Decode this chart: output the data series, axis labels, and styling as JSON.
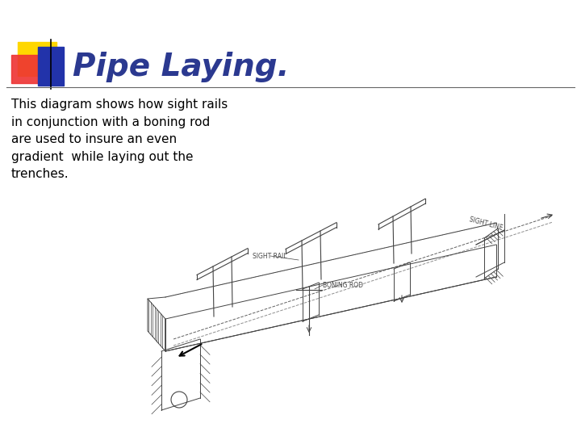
{
  "title": "Pipe Laying.",
  "title_color": "#2B3990",
  "title_fontsize": 28,
  "title_style": "italic",
  "body_text": "This diagram shows how sight rails\nin conjunction with a boning rod\nare used to insure an even\ngradient  while laying out the\ntrenches.",
  "body_fontsize": 11,
  "body_color": "#000000",
  "bg_color": "#FFFFFF",
  "logo_yellow": "#FFD700",
  "logo_red": "#EE3333",
  "logo_blue_dark": "#2233AA",
  "logo_blue_light": "#6688EE",
  "separator_color": "#666666",
  "diagram_color": "#444444",
  "label_sight_rail": "SIGHT RAIL",
  "label_boning_rod": "BONING ROD",
  "label_sight_line": "SIGHT LINE"
}
